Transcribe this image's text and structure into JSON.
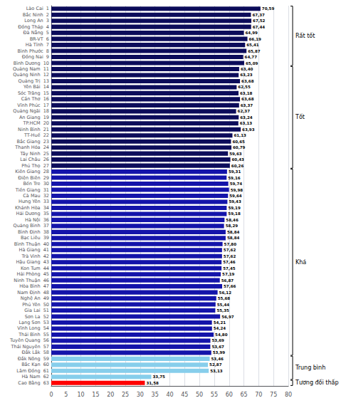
{
  "chart_data": {
    "type": "bar",
    "orientation": "horizontal",
    "categories": [
      "Lào Cai  1",
      "Bắc Ninh  2",
      "Long An  3",
      "Đồng Tháp  4",
      "Đà Nẵng  5",
      "BR-VT  6",
      "Hà Tĩnh  7",
      "Bình Phước  8",
      "Đồng Nai  9",
      "Bình Dương  10",
      "Quảng Nam  11",
      "Quảng Ninh  12",
      "Quảng Trị  13",
      "Yên Bái  14",
      "Sóc Trăng  15",
      "Cần Thơ  16",
      "Vĩnh Phúc  17",
      "Quảng Ngãi  18",
      "An Giang  19",
      "TP.HCM  20",
      "Ninh Bình  21",
      "TT-Huế  22",
      "Bắc Giang  23",
      "Thanh Hóa  24",
      "Tây Ninh  25",
      "Lai Châu  26",
      "Phú Thọ  27",
      "Kiên Giang  28",
      "Điện Biên  29",
      "Bến Tre  30",
      "Tiền Giang  31",
      "Cà Mau  32",
      "Hưng Yên  33",
      "Khánh Hòa  34",
      "Hải Dương  35",
      "Hà Nội  36",
      "Quảng Bình  37",
      "Bình Định  38",
      "Bạc Liêu  39",
      "Bình Thuận  40",
      "Hà Giang  41",
      "Trà Vinh  42",
      "Hậu Giang  43",
      "Kon Tum  44",
      "Hải Phòng  45",
      "Ninh Thuận  46",
      "Hòa Bình  47",
      "Nam Định  48",
      "Nghệ An  49",
      "Phú Yên  50",
      "Gia Lai  51",
      "Sơn La  52",
      "Lạng Sơn  53",
      "Vĩnh Long  54",
      "Thái Bình  55",
      "Tuyên Quang  56",
      "Thái Nguyên  57",
      "Đắk Lắk  58",
      "Đắk Nông  59",
      "Bắc Kạn  60",
      "Lâm Đồng  61",
      "Hà Nam  62",
      "Cao Bằng  63"
    ],
    "values": [
      70.59,
      67.37,
      67.52,
      67.44,
      64.99,
      66.19,
      65.41,
      65.87,
      64.77,
      65.09,
      63.4,
      63.23,
      63.68,
      62.55,
      63.18,
      63.68,
      63.37,
      62.37,
      63.24,
      63.13,
      63.93,
      61.13,
      60.65,
      60.79,
      59.63,
      60.43,
      60.26,
      59.31,
      59.16,
      59.74,
      59.98,
      59.64,
      59.43,
      59.19,
      59.18,
      58.46,
      58.29,
      58.84,
      58.84,
      57.8,
      57.62,
      57.62,
      57.46,
      57.45,
      57.19,
      56.87,
      57.66,
      56.12,
      55.68,
      55.44,
      55.35,
      56.97,
      54.21,
      54.24,
      54.8,
      53.69,
      53.67,
      53.99,
      53.46,
      52.87,
      53.13,
      33.75,
      31.58
    ],
    "value_labels": [
      "70,59",
      "67,37",
      "67,52",
      "67,44",
      "64,99",
      "66,19",
      "65,41",
      "65,87",
      "64,77",
      "65,09",
      "63,40",
      "63,23",
      "63,68",
      "62,55",
      "63,18",
      "63,68",
      "63,37",
      "62,37",
      "63,24",
      "63,13",
      "63,93",
      "61,13",
      "60,65",
      "60,79",
      "59,63",
      "60,43",
      "60,26",
      "59,31",
      "59,16",
      "59,74",
      "59,98",
      "59,64",
      "59,43",
      "59,19",
      "59,18",
      "58,46",
      "58,29",
      "58,84",
      "58,84",
      "57,80",
      "57,62",
      "57,62",
      "57,46",
      "57,45",
      "57,19",
      "56,87",
      "57,66",
      "56,12",
      "55,68",
      "55,44",
      "55,35",
      "56,97",
      "54,21",
      "54,24",
      "54,80",
      "53,69",
      "53,67",
      "53,99",
      "53,46",
      "52,87",
      "53,13",
      "33,75",
      "31,58"
    ],
    "colors": [
      "#0c0c5a",
      "#0c0c5a",
      "#0c0c5a",
      "#0c0c5a",
      "#0c0c5a",
      "#0c0c5a",
      "#0c0c5a",
      "#0c0c5a",
      "#0c0c5a",
      "#0c0c5a",
      "#0c0c5a",
      "#0c0c5a",
      "#0c0c5a",
      "#0c0c5a",
      "#0c0c5a",
      "#0c0c5a",
      "#0c0c5a",
      "#0c0c5a",
      "#0c0c5a",
      "#0c0c5a",
      "#0c0c5a",
      "#0c0c5a",
      "#0c0c5a",
      "#0c0c5a",
      "#0c0c5a",
      "#0c0c5a",
      "#0c0c5a",
      "#1414aa",
      "#1414aa",
      "#1414aa",
      "#1414aa",
      "#1414aa",
      "#1414aa",
      "#1414aa",
      "#1414aa",
      "#1414aa",
      "#1414aa",
      "#1414aa",
      "#1414aa",
      "#1414aa",
      "#1414aa",
      "#1414aa",
      "#1414aa",
      "#1414aa",
      "#1414aa",
      "#1414aa",
      "#1414aa",
      "#1414aa",
      "#1414aa",
      "#1414aa",
      "#1414aa",
      "#1414aa",
      "#1414aa",
      "#1414aa",
      "#1414aa",
      "#1414aa",
      "#1414aa",
      "#1414aa",
      "#87ceeb",
      "#87ceeb",
      "#87ceeb",
      "#87ceeb",
      "#ff0000"
    ],
    "data_labels": true,
    "annotations": [
      {
        "text": "Rất tốt",
        "from": "Lào Cai  1",
        "to": "Bình Dương  10"
      },
      {
        "text": "Tốt",
        "from": "Quảng Nam  11",
        "to": "Phú Thọ  27"
      },
      {
        "text": "Khá",
        "from": "Kiên Giang  28",
        "to": "Đắk Lắk  58"
      },
      {
        "text": "Trung bình",
        "from": "Đắk Nông  59",
        "to": "Hà Nam  62"
      },
      {
        "text": "Tương đối thấp",
        "from": "Cao Bằng  63",
        "to": "Cao Bằng  63"
      }
    ],
    "xlim": [
      0,
      80
    ],
    "xticks": [
      0,
      5,
      10,
      15,
      20,
      25,
      30,
      35,
      40,
      45,
      50,
      55,
      60,
      65,
      70,
      75,
      80
    ],
    "grid": true
  }
}
